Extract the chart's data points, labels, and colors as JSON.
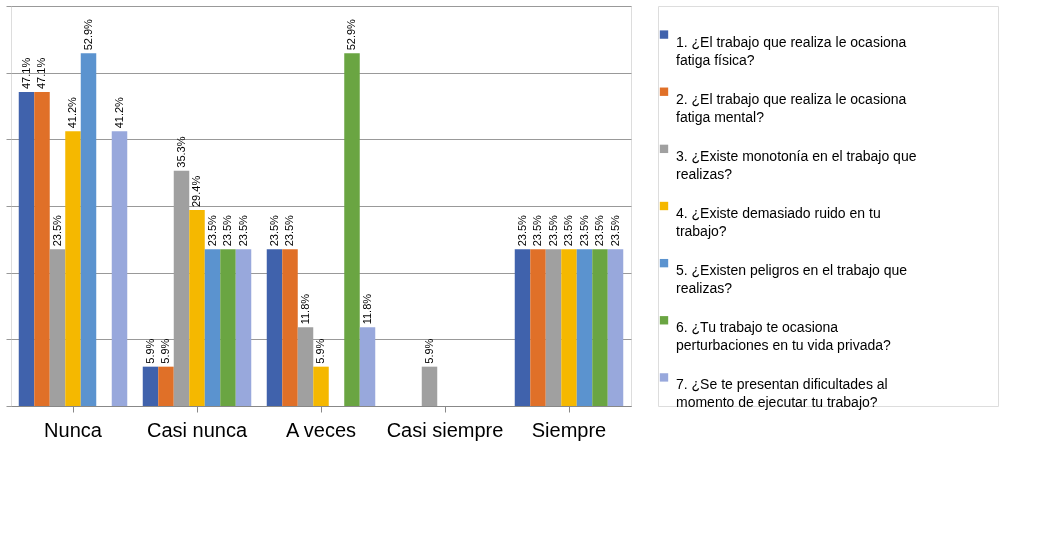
{
  "chart_data": {
    "type": "bar",
    "categories": [
      "Nunca",
      "Casi nunca",
      "A veces",
      "Casi siempre",
      "Siempre"
    ],
    "series": [
      {
        "name": "1. ¿El trabajo que realiza le ocasiona fatiga física?",
        "color": "#4062ac",
        "values": [
          47.1,
          5.9,
          23.5,
          0,
          23.5
        ],
        "value_labels": [
          "47.1%",
          "5.9%",
          "23.5%",
          null,
          "23.5%"
        ]
      },
      {
        "name": "2.  ¿El trabajo que realiza le ocasiona fatiga mental?",
        "color": "#e07028",
        "values": [
          47.1,
          5.9,
          23.5,
          0,
          23.5
        ],
        "value_labels": [
          "47.1%",
          "5.9%",
          "23.5%",
          null,
          "23.5%"
        ]
      },
      {
        "name": "3. ¿Existe monotonía en el trabajo que realizas?",
        "color": "#a0a0a0",
        "values": [
          23.5,
          35.3,
          11.8,
          5.9,
          23.5
        ],
        "value_labels": [
          "23.5%",
          "35.3%",
          "11.8%",
          "5.9%",
          "23.5%"
        ]
      },
      {
        "name": "4. ¿Existe demasiado ruido en tu trabajo?",
        "color": "#f5b800",
        "values": [
          41.2,
          29.4,
          5.9,
          0,
          23.5
        ],
        "value_labels": [
          "41.2%",
          "29.4%",
          "5.9%",
          null,
          "23.5%"
        ]
      },
      {
        "name": "5. ¿Existen peligros en el trabajo que realizas?",
        "color": "#5b93cf",
        "values": [
          52.9,
          23.5,
          0,
          0,
          23.5
        ],
        "value_labels": [
          "52.9%",
          "23.5%",
          null,
          null,
          "23.5%"
        ]
      },
      {
        "name": "6. ¿Tu trabajo te ocasiona perturbaciones en tu vida privada?",
        "color": "#6aa542",
        "values": [
          0,
          23.5,
          52.9,
          0,
          23.5
        ],
        "value_labels": [
          null,
          "23.5%",
          "52.9%",
          null,
          "23.5%"
        ]
      },
      {
        "name": "7. ¿Se te presentan dificultades al momento de ejecutar tu trabajo?",
        "color": "#98a8dc",
        "values": [
          41.2,
          23.5,
          11.8,
          0,
          23.5
        ],
        "value_labels": [
          "41.2%",
          "23.5%",
          "11.8%",
          null,
          "23.5%"
        ]
      }
    ],
    "ylim": [
      0,
      60
    ],
    "yticks": [
      {
        "value": 0,
        "label": null
      },
      {
        "value": 10,
        "label": null
      },
      {
        "value": 20,
        "label": null
      },
      {
        "value": 30,
        "label": null
      },
      {
        "value": 40,
        "label": null
      },
      {
        "value": 50,
        "label": null
      },
      {
        "value": 60,
        "label": null
      }
    ],
    "tick_labels": "x",
    "grid": "y",
    "legend": "right"
  }
}
